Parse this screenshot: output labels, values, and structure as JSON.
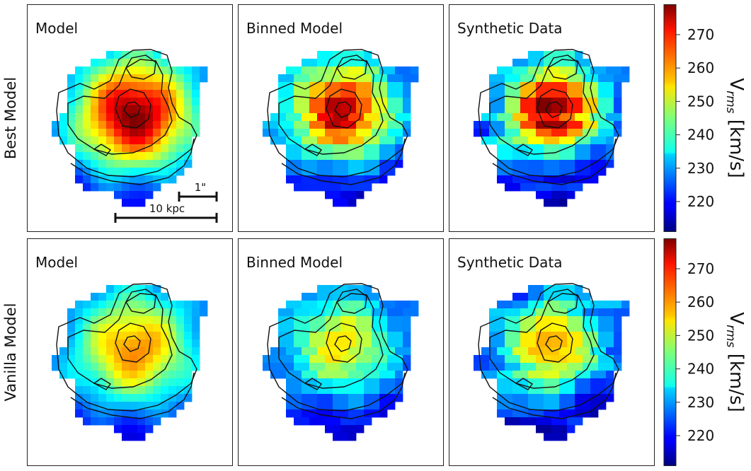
{
  "chart_data": {
    "type": "heatmap",
    "description_colormap": "jet",
    "row_labels": [
      "Best Model",
      "Vanilla Model"
    ],
    "column_titles": [
      "Model",
      "Binned Model",
      "Synthetic Data"
    ],
    "colorbar": {
      "label_main": "V",
      "label_sub": "rms",
      "label_unit": " [km/s]",
      "range": [
        211,
        279
      ],
      "ticks": [
        220,
        230,
        240,
        250,
        260,
        270
      ]
    },
    "scale_bars": {
      "arcsec_label": "1\"",
      "kpc_label": "10 kpc"
    },
    "panels": [
      {
        "row": 0,
        "col": 0,
        "title": "Model",
        "peak": 279,
        "spread": 1.0,
        "type": "smooth"
      },
      {
        "row": 0,
        "col": 1,
        "title": "Binned Model",
        "peak": 276,
        "spread": 0.85,
        "type": "binned"
      },
      {
        "row": 0,
        "col": 2,
        "title": "Synthetic Data",
        "peak": 278,
        "spread": 0.8,
        "type": "synthetic"
      },
      {
        "row": 1,
        "col": 0,
        "title": "Model",
        "peak": 262,
        "spread": 1.0,
        "type": "smooth"
      },
      {
        "row": 1,
        "col": 1,
        "title": "Binned Model",
        "peak": 256,
        "spread": 0.85,
        "type": "binned"
      },
      {
        "row": 1,
        "col": 2,
        "title": "Synthetic Data",
        "peak": 262,
        "spread": 0.8,
        "type": "synthetic"
      }
    ],
    "min_value": 223
  }
}
